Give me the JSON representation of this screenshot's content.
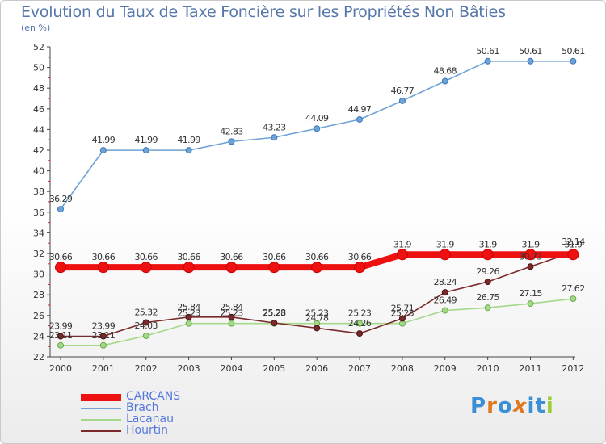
{
  "title": "Evolution du Taux de Taxe Foncière sur les Propriétés Non Bâties",
  "unit_label": "(en %)",
  "brand": {
    "letters": [
      "P",
      "r",
      "o",
      "x",
      "i",
      "t",
      "i"
    ],
    "colors": [
      "#3a8fd6",
      "#e07820",
      "#3a8fd6",
      "#e07820",
      "#3a8fd6",
      "#3a8fd6",
      "#9acd32"
    ]
  },
  "chart_data": {
    "type": "line",
    "title": "Evolution du Taux de Taxe Foncière sur les Propriétés Non Bâties",
    "ylabel": "(en %)",
    "x": [
      "2000",
      "2001",
      "2002",
      "2003",
      "2004",
      "2005",
      "2006",
      "2007",
      "2008",
      "2009",
      "2010",
      "2011",
      "2012"
    ],
    "ylim": [
      22,
      52
    ],
    "yticks": [
      22,
      24,
      26,
      28,
      30,
      32,
      34,
      36,
      38,
      40,
      42,
      44,
      46,
      48,
      50,
      52
    ],
    "grid": false,
    "legend": "bottom-left",
    "series": [
      {
        "name": "CARCANS",
        "color": "#ee1111",
        "values": [
          30.66,
          30.66,
          30.66,
          30.66,
          30.66,
          30.66,
          30.66,
          30.66,
          31.9,
          31.9,
          31.9,
          31.9,
          31.9
        ],
        "labels": [
          "30.66",
          "30.66",
          "30.66",
          "30.66",
          "30.66",
          "30.66",
          "30.66",
          "30.66",
          "31.9",
          "31.9",
          "31.9",
          "31.9",
          "31.9"
        ]
      },
      {
        "name": "Brach",
        "color": "#6fa2d6",
        "values": [
          36.29,
          41.99,
          41.99,
          41.99,
          42.83,
          43.23,
          44.09,
          44.97,
          46.77,
          48.68,
          50.61,
          50.61,
          50.61
        ],
        "labels": [
          "36.29",
          "41.99",
          "41.99",
          "41.99",
          "42.83",
          "43.23",
          "44.09",
          "44.97",
          "46.77",
          "48.68",
          "50.61",
          "50.61",
          "50.61"
        ]
      },
      {
        "name": "Lacanau",
        "color": "#a4d88a",
        "values": [
          23.11,
          23.11,
          24.03,
          25.23,
          25.23,
          25.23,
          25.23,
          25.23,
          25.23,
          26.49,
          26.75,
          27.15,
          27.62
        ],
        "labels": [
          "23.11",
          "23.11",
          "24.03",
          "25.23",
          "25.23",
          "25.23",
          "25.23",
          "25.23",
          "25.23",
          "26.49",
          "26.75",
          "27.15",
          "27.62"
        ]
      },
      {
        "name": "Hourtin",
        "color": "#7a2a2a",
        "values": [
          23.99,
          23.99,
          25.32,
          25.84,
          25.84,
          25.28,
          24.78,
          24.26,
          25.71,
          28.24,
          29.26,
          30.73,
          32.14
        ],
        "labels": [
          "23.99",
          "23.99",
          "25.32",
          "25.84",
          "25.84",
          "25.28",
          "24.78",
          "24.26",
          "25.71",
          "28.24",
          "29.26",
          "30.73",
          "32.14"
        ]
      }
    ]
  }
}
